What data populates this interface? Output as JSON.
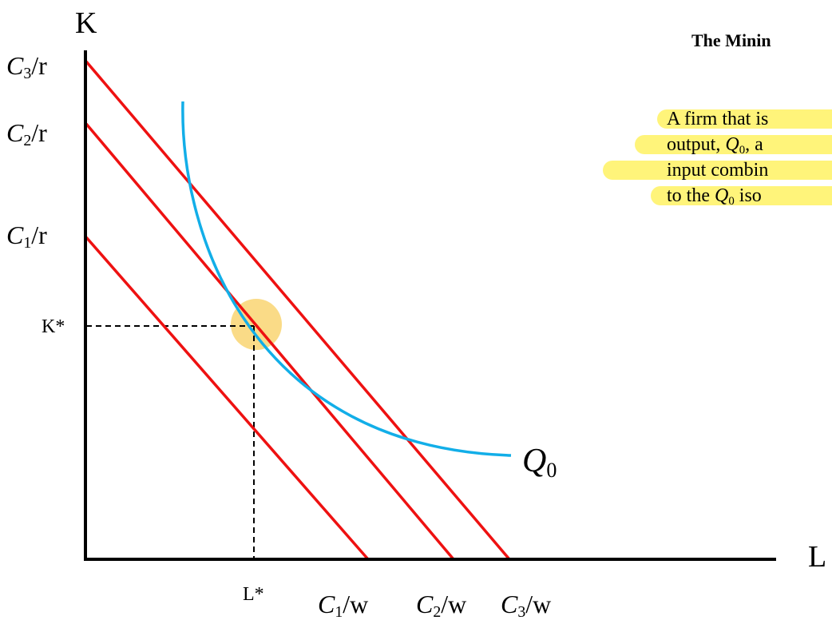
{
  "title": "The Minin",
  "description_lines": [
    {
      "pre": "A firm that is",
      "var": "",
      "var_sub": "",
      "post": ""
    },
    {
      "pre": "output, ",
      "var": "Q",
      "var_sub": "0",
      "post": ", a"
    },
    {
      "pre": "input combin",
      "var": "",
      "var_sub": "",
      "post": ""
    },
    {
      "pre": "to the ",
      "var": "Q",
      "var_sub": "0",
      "post": " iso"
    }
  ],
  "axes": {
    "y_label": "K",
    "x_label": "L"
  },
  "y_ticks": [
    {
      "var": "C",
      "sub": "3",
      "suffix": "/r"
    },
    {
      "var": "C",
      "sub": "2",
      "suffix": "/r"
    },
    {
      "var": "C",
      "sub": "1",
      "suffix": "/r"
    },
    {
      "text": "K*"
    }
  ],
  "x_ticks": [
    {
      "text": "L*"
    },
    {
      "var": "C",
      "sub": "1",
      "suffix": "/w"
    },
    {
      "var": "C",
      "sub": "2",
      "suffix": "/w"
    },
    {
      "var": "C",
      "sub": "3",
      "suffix": "/w"
    }
  ],
  "curve_label": {
    "var": "Q",
    "sub": "0"
  },
  "colors": {
    "isocost": "#ee1111",
    "isoquant": "#12aee8",
    "highlight": "#fff47a",
    "optimum_marker": "#f9d77a",
    "axis": "#000000"
  }
}
